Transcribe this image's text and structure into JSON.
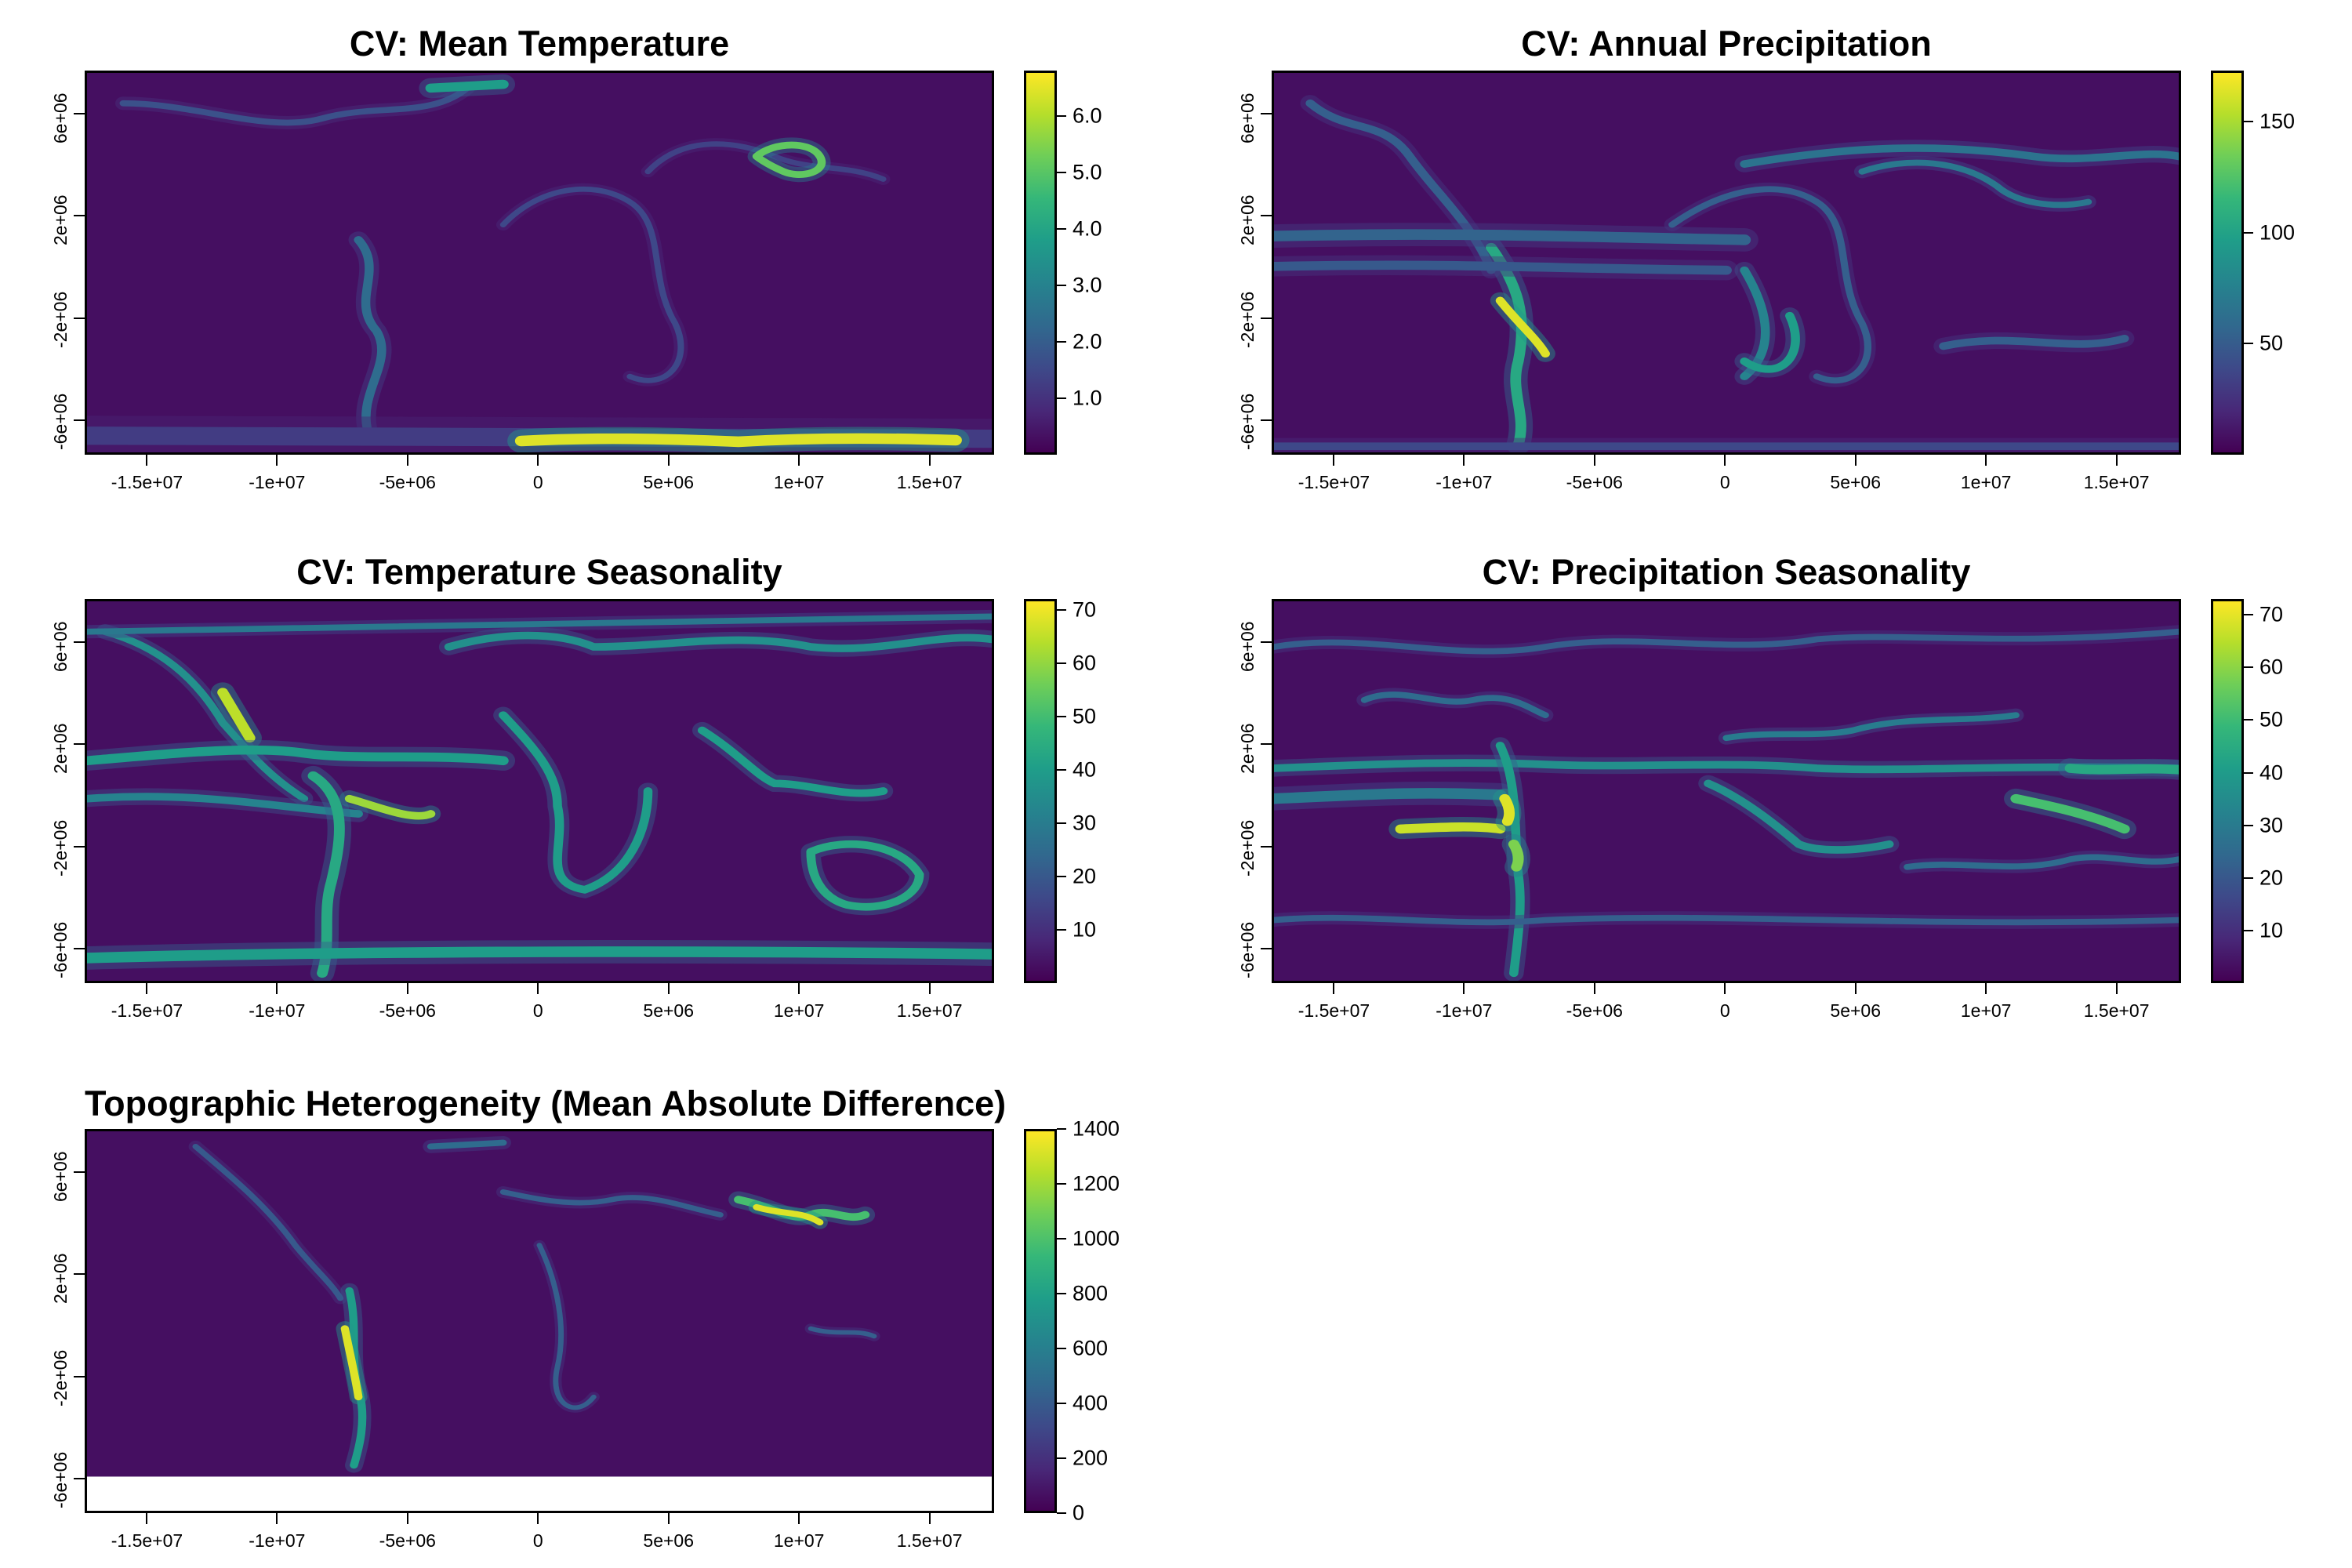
{
  "panels": [
    {
      "title": "CV: Mean Temperature",
      "x_ticks": [
        "-1.5e+07",
        "-1e+07",
        "-5e+06",
        "0",
        "5e+06",
        "1e+07",
        "1.5e+07"
      ],
      "y_ticks": [
        "6e+06",
        "2e+06",
        "-2e+06",
        "-6e+06"
      ],
      "colorbar_ticks": [
        "6.0",
        "5.0",
        "4.0",
        "3.0",
        "2.0",
        "1.0"
      ],
      "colorbar_values": [
        6.0,
        5.0,
        4.0,
        3.0,
        2.0,
        1.0
      ],
      "colorbar_range": [
        0,
        6.8
      ]
    },
    {
      "title": "CV: Annual Precipitation",
      "x_ticks": [
        "-1.5e+07",
        "-1e+07",
        "-5e+06",
        "0",
        "5e+06",
        "1e+07",
        "1.5e+07"
      ],
      "y_ticks": [
        "6e+06",
        "2e+06",
        "-2e+06",
        "-6e+06"
      ],
      "colorbar_ticks": [
        "150",
        "100",
        "50"
      ],
      "colorbar_values": [
        150,
        100,
        50
      ],
      "colorbar_range": [
        0,
        173
      ]
    },
    {
      "title": "CV: Temperature Seasonality",
      "x_ticks": [
        "-1.5e+07",
        "-1e+07",
        "-5e+06",
        "0",
        "5e+06",
        "1e+07",
        "1.5e+07"
      ],
      "y_ticks": [
        "6e+06",
        "2e+06",
        "-2e+06",
        "-6e+06"
      ],
      "colorbar_ticks": [
        "70",
        "60",
        "50",
        "40",
        "30",
        "20",
        "10"
      ],
      "colorbar_values": [
        70,
        60,
        50,
        40,
        30,
        20,
        10
      ],
      "colorbar_range": [
        0,
        72
      ]
    },
    {
      "title": "CV: Precipitation Seasonality",
      "x_ticks": [
        "-1.5e+07",
        "-1e+07",
        "-5e+06",
        "0",
        "5e+06",
        "1e+07",
        "1.5e+07"
      ],
      "y_ticks": [
        "6e+06",
        "2e+06",
        "-2e+06",
        "-6e+06"
      ],
      "colorbar_ticks": [
        "70",
        "60",
        "50",
        "40",
        "30",
        "20",
        "10"
      ],
      "colorbar_values": [
        70,
        60,
        50,
        40,
        30,
        20,
        10
      ],
      "colorbar_range": [
        0,
        73
      ]
    },
    {
      "title": "Topographic Heterogeneity (Mean Absolute Difference)",
      "x_ticks": [
        "-1.5e+07",
        "-1e+07",
        "-5e+06",
        "0",
        "5e+06",
        "1e+07",
        "1.5e+07"
      ],
      "y_ticks": [
        "6e+06",
        "2e+06",
        "-2e+06",
        "-6e+06"
      ],
      "colorbar_ticks": [
        "1400",
        "1200",
        "1000",
        "800",
        "600",
        "400",
        "200",
        "0"
      ],
      "colorbar_values": [
        1400,
        1200,
        1000,
        800,
        600,
        400,
        200,
        0
      ],
      "colorbar_range": [
        0,
        1400
      ]
    }
  ],
  "colormap": [
    "#440154",
    "#482878",
    "#3e4989",
    "#31688e",
    "#26828e",
    "#1f9e89",
    "#35b779",
    "#6ece58",
    "#b5de2b",
    "#fde725"
  ]
}
